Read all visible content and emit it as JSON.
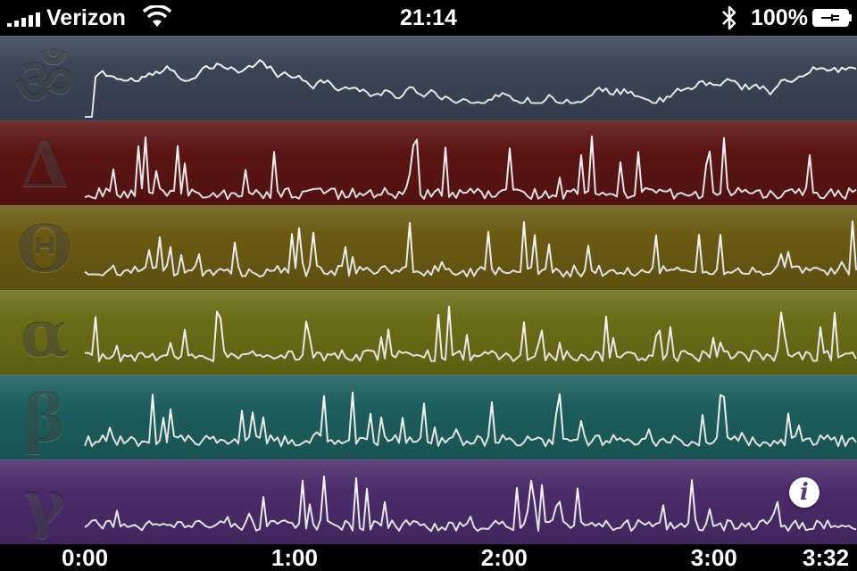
{
  "status_bar": {
    "carrier": "Verizon",
    "time": "21:14",
    "battery": "100%",
    "signal_icon": "signal-bars-icon",
    "wifi_icon": "wifi-icon",
    "bluetooth_icon": "bluetooth-icon",
    "battery_icon": "battery-charging-icon"
  },
  "bands": [
    {
      "symbol": "ॐ",
      "color": "#3a4557",
      "name": "om"
    },
    {
      "symbol": "Δ",
      "color": "#5c1414",
      "name": "delta"
    },
    {
      "symbol": "Θ",
      "color": "#6a5a12",
      "name": "theta"
    },
    {
      "symbol": "α",
      "color": "#6a6c16",
      "name": "alpha"
    },
    {
      "symbol": "β",
      "color": "#1d5e5e",
      "name": "beta"
    },
    {
      "symbol": "γ",
      "color": "#4b2b6a",
      "name": "gamma"
    }
  ],
  "time_axis": {
    "labels": [
      "0:00",
      "1:00",
      "2:00",
      "3:00",
      "3:32"
    ],
    "seconds": [
      0,
      60,
      120,
      180,
      212
    ],
    "total_seconds": 212
  },
  "info_button": {
    "label": "i",
    "icon": "info-icon"
  }
}
